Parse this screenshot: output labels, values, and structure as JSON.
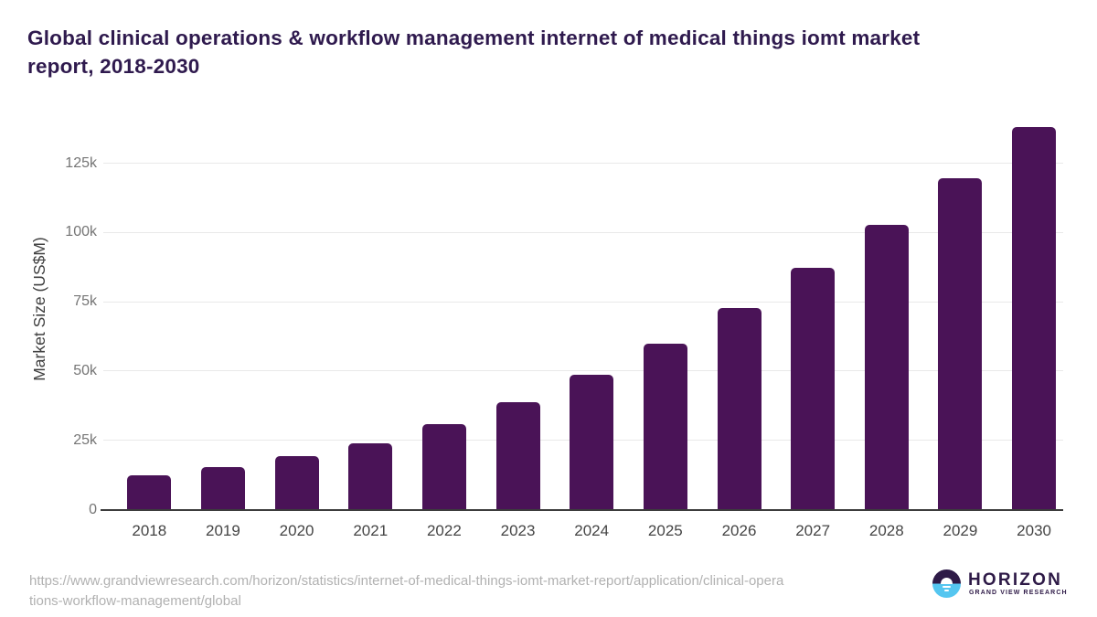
{
  "header": {
    "title_line1": "Global clinical operations & workflow management internet of medical things iomt market",
    "title_line2": "report, 2018-2030"
  },
  "chart_data": {
    "type": "bar",
    "title": "Global clinical operations & workflow management internet of medical things iomt market report, 2018-2030",
    "categories": [
      "2018",
      "2019",
      "2020",
      "2021",
      "2022",
      "2023",
      "2024",
      "2025",
      "2026",
      "2027",
      "2028",
      "2029",
      "2030"
    ],
    "values": [
      12300,
      15400,
      19300,
      24000,
      30700,
      38700,
      48600,
      59900,
      72800,
      87300,
      102900,
      119500,
      137900
    ],
    "unit": "US$M",
    "xlabel": "",
    "ylabel": "Market Size (US$M)",
    "ylim": [
      0,
      140000
    ],
    "yticks": [
      0,
      25000,
      50000,
      75000,
      100000,
      125000
    ],
    "ytick_labels": [
      "0",
      "25k",
      "50k",
      "75k",
      "100k",
      "125k"
    ],
    "grid": true,
    "legend": "none",
    "bar_color": "#4a1357"
  },
  "footer": {
    "url_line1": "https://www.grandviewresearch.com/horizon/statistics/internet-of-medical-things-iomt-market-report/application/clinical-opera",
    "url_line2": "tions-workflow-management/global",
    "logo": {
      "brand": "HORIZON",
      "tagline": "GRAND VIEW RESEARCH",
      "icon": "horizon-sun-over-water-icon",
      "purple": "#2e1a47",
      "blue": "#55c6f0"
    }
  },
  "colors": {
    "title": "#2f1a4e",
    "bar": "#4a1357",
    "gridline": "#e9e9e9",
    "axis_line": "#3c3c3c",
    "y_tick_label": "#757575",
    "x_label": "#454545",
    "y_axis_title": "#404040",
    "url_text": "#b1b1b1"
  }
}
